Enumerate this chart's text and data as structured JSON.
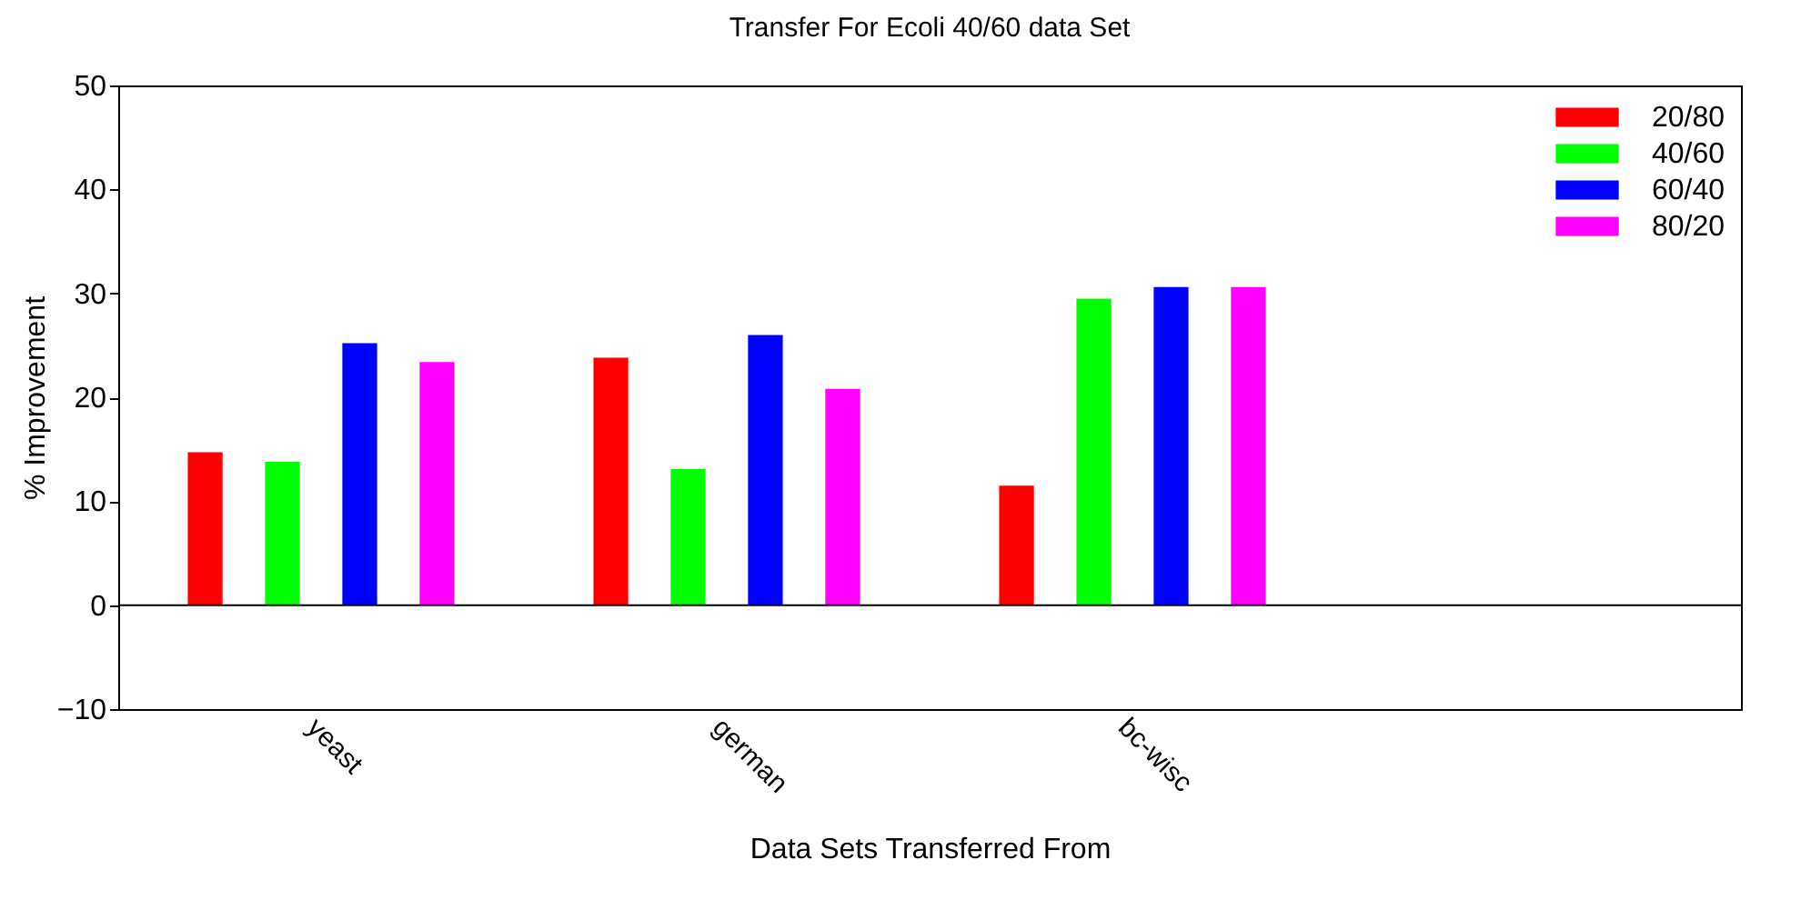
{
  "chart_data": {
    "type": "bar",
    "title": "Transfer For Ecoli 40/60 data Set",
    "xlabel": "Data Sets Transferred From",
    "ylabel": "% Improvement",
    "categories": [
      "yeast",
      "german",
      "bc-wisc",
      null
    ],
    "series": [
      {
        "name": "20/80",
        "color": "#ff0000",
        "values": [
          14.7,
          23.8,
          11.5,
          null
        ]
      },
      {
        "name": "40/60",
        "color": "#00ff00",
        "values": [
          13.8,
          13.1,
          29.5,
          null
        ]
      },
      {
        "name": "60/40",
        "color": "#0000ff",
        "values": [
          25.2,
          26.0,
          30.6,
          null
        ]
      },
      {
        "name": "80/20",
        "color": "#ff00ff",
        "values": [
          23.4,
          20.8,
          30.6,
          null
        ]
      }
    ],
    "ylim": [
      -10,
      50
    ],
    "yticks": [
      -10,
      0,
      10,
      20,
      30,
      40,
      50
    ],
    "grid": false,
    "legend": "top right",
    "ref_lines": [
      {
        "axis": "y",
        "value": 0,
        "color": "#000000"
      }
    ]
  }
}
